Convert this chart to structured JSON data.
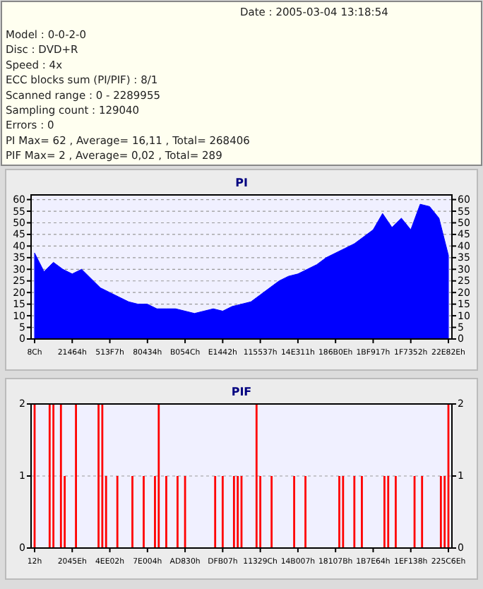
{
  "chart_data": [
    {
      "type": "other",
      "annotations": [
        "Date : 2005-03-04 13:18:54",
        "Model : 0-0-2-0",
        "Disc : DVD+R",
        "Speed : 4x",
        "ECC blocks sum (PI/PIF) : 8/1",
        "Scanned range : 0 - 2289955",
        "Sampling count : 129040",
        "Errors : 0",
        "PI Max= 62 , Average= 16,11 , Total= 268406",
        "PIF Max= 2 , Average= 0,02 , Total= 289"
      ]
    },
    {
      "type": "area",
      "title": "PI",
      "grid": "y",
      "ylim": [
        0,
        62
      ],
      "yticks": [
        0,
        5,
        10,
        15,
        20,
        25,
        30,
        35,
        40,
        45,
        50,
        55,
        60
      ],
      "y2lim": [
        0,
        62
      ],
      "y2ticks": [
        0,
        5,
        10,
        15,
        20,
        25,
        30,
        35,
        40,
        45,
        50,
        55,
        60
      ],
      "categories": [
        "8Ch",
        null,
        null,
        null,
        "21464h",
        null,
        null,
        null,
        "513F7h",
        null,
        null,
        null,
        "80434h",
        null,
        null,
        null,
        "B054Ch",
        null,
        null,
        null,
        "E1442h",
        null,
        null,
        null,
        "115537h",
        null,
        null,
        null,
        "14E311h",
        null,
        null,
        null,
        "186B0Eh",
        null,
        null,
        null,
        "1BF917h",
        null,
        null,
        null,
        "1F7352h",
        null,
        null,
        null,
        "22E82Eh"
      ],
      "series": [
        {
          "color": "#0000ff",
          "values": [
            37,
            29,
            33,
            30,
            28,
            30,
            26,
            22,
            20,
            18,
            16,
            15,
            15,
            13,
            13,
            13,
            12,
            11,
            12,
            13,
            12,
            14,
            15,
            16,
            19,
            22,
            25,
            27,
            28,
            30,
            32,
            35,
            37,
            39,
            41,
            44,
            47,
            54,
            48,
            52,
            47,
            58,
            57,
            52,
            36
          ]
        }
      ]
    },
    {
      "type": "bar",
      "title": "PIF",
      "grid": "y",
      "ylim": [
        0,
        2
      ],
      "yticks": [
        0,
        1,
        2
      ],
      "y2lim": [
        0,
        2
      ],
      "y2ticks": [
        0,
        1,
        2
      ],
      "categories": [
        "12h",
        null,
        null,
        null,
        null,
        null,
        null,
        null,
        null,
        null,
        "2045Eh",
        null,
        null,
        null,
        null,
        null,
        null,
        null,
        null,
        null,
        "4EE02h",
        null,
        null,
        null,
        null,
        null,
        null,
        null,
        null,
        null,
        "7E004h",
        null,
        null,
        null,
        null,
        null,
        null,
        null,
        null,
        null,
        "AD830h",
        null,
        null,
        null,
        null,
        null,
        null,
        null,
        null,
        null,
        "DFB07h",
        null,
        null,
        null,
        null,
        null,
        null,
        null,
        null,
        null,
        "11329Ch",
        null,
        null,
        null,
        null,
        null,
        null,
        null,
        null,
        null,
        "14B007h",
        null,
        null,
        null,
        null,
        null,
        null,
        null,
        null,
        null,
        "18107Bh",
        null,
        null,
        null,
        null,
        null,
        null,
        null,
        null,
        null,
        "1B7E64h",
        null,
        null,
        null,
        null,
        null,
        null,
        null,
        null,
        null,
        "1EF138h",
        null,
        null,
        null,
        null,
        null,
        null,
        null,
        null,
        null,
        "225C6Eh"
      ],
      "series": [
        {
          "color": "#ff0000",
          "values": [
            2,
            null,
            null,
            null,
            2,
            2,
            null,
            2,
            1,
            null,
            null,
            2,
            null,
            null,
            null,
            null,
            null,
            2,
            2,
            1,
            null,
            null,
            1,
            null,
            null,
            null,
            1,
            null,
            null,
            1,
            null,
            null,
            1,
            2,
            null,
            1,
            null,
            null,
            1,
            null,
            1,
            null,
            null,
            null,
            null,
            null,
            null,
            null,
            1,
            null,
            1,
            null,
            null,
            1,
            1,
            1,
            null,
            null,
            null,
            2,
            1,
            null,
            null,
            1,
            null,
            null,
            null,
            null,
            null,
            1,
            null,
            null,
            1,
            null,
            null,
            null,
            null,
            null,
            null,
            null,
            null,
            1,
            1,
            null,
            null,
            1,
            null,
            1,
            null,
            null,
            null,
            null,
            null,
            1,
            1,
            null,
            1,
            null,
            null,
            null,
            null,
            1,
            null,
            1,
            null,
            null,
            null,
            null,
            1,
            1,
            2
          ]
        }
      ]
    }
  ]
}
